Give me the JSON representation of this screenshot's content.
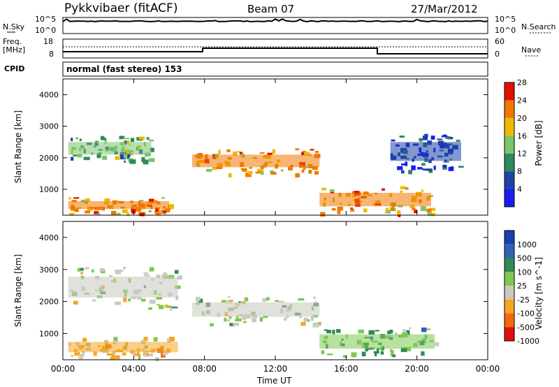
{
  "header": {
    "radar": "Pykkvibaer (fitACF)",
    "beam": "Beam 07",
    "date": "27/Mar/2012"
  },
  "noise_panel": {
    "left_label": "N.Sky",
    "right_label": "N.Search",
    "left_ticks": [
      "10^5",
      "10^0"
    ],
    "right_ticks": [
      "10^5",
      "10^0"
    ]
  },
  "freq_panel": {
    "left_label_1": "Freq.",
    "left_label_2": "[MHz]",
    "right_label": "Nave",
    "left_ticks": [
      "18",
      "8"
    ],
    "right_ticks": [
      "60",
      "0"
    ]
  },
  "cpid": {
    "label": "CPID",
    "value": "normal (fast stereo) 153"
  },
  "x_axis": {
    "label": "Time UT",
    "ticks": [
      "00:00",
      "04:00",
      "08:00",
      "12:00",
      "16:00",
      "20:00",
      "00:00"
    ]
  },
  "chart_data": [
    {
      "type": "heatmap",
      "title": "",
      "xlabel": "Time UT",
      "ylabel": "Slant Range [km]",
      "x_ticks": [
        "00:00",
        "04:00",
        "08:00",
        "12:00",
        "16:00",
        "20:00",
        "00:00"
      ],
      "x_range_hours": [
        0,
        24
      ],
      "ylim": [
        180,
        4500
      ],
      "y_ticks": [
        1000,
        2000,
        3000,
        4000
      ],
      "colorbar": {
        "label": "Power [dB]",
        "ticks": [
          4,
          8,
          12,
          16,
          20,
          24,
          28
        ],
        "colors": [
          "#1c1cf2",
          "#1e44a8",
          "#2e8a5a",
          "#7cc46a",
          "#f0b800",
          "#f07800",
          "#e21000"
        ]
      },
      "regions": [
        {
          "name": "morning-near",
          "t": [
            0.3,
            6.0
          ],
          "range": [
            250,
            750
          ],
          "value": 26
        },
        {
          "name": "morning-arc",
          "t": [
            0.3,
            5.0
          ],
          "range": [
            1900,
            2700
          ],
          "value": 18
        },
        {
          "name": "midday-band",
          "t": [
            7.3,
            14.5
          ],
          "range": [
            1500,
            2300
          ],
          "value": 26
        },
        {
          "name": "afternoon-near",
          "t": [
            14.5,
            20.8
          ],
          "range": [
            250,
            1100
          ],
          "value": 24
        },
        {
          "name": "evening-echo",
          "t": [
            18.5,
            22.5
          ],
          "range": [
            1600,
            2800
          ],
          "value": 10
        }
      ]
    },
    {
      "type": "heatmap",
      "title": "",
      "xlabel": "Time UT",
      "ylabel": "Slant Range [km]",
      "x_ticks": [
        "00:00",
        "04:00",
        "08:00",
        "12:00",
        "16:00",
        "20:00",
        "00:00"
      ],
      "x_range_hours": [
        0,
        24
      ],
      "ylim": [
        180,
        4500
      ],
      "y_ticks": [
        1000,
        2000,
        3000,
        4000
      ],
      "colorbar": {
        "label": "Velocity [m s^-1]",
        "ticks": [
          "1000",
          "500",
          "100",
          "25",
          "-25",
          "-100",
          "-500",
          "-1000"
        ],
        "colors": [
          "#1d3fb0",
          "#2e63b8",
          "#2f8a55",
          "#7ec850",
          "#c9c9c0",
          "#f5a623",
          "#f26a0c",
          "#e0100c"
        ]
      },
      "regions": [
        {
          "name": "ground-scatter-arc",
          "t": [
            0.3,
            6.5
          ],
          "range": [
            1800,
            3100
          ],
          "value": 0
        },
        {
          "name": "morning-near",
          "t": [
            0.3,
            6.5
          ],
          "range": [
            250,
            900
          ],
          "value": -150
        },
        {
          "name": "midday-ground",
          "t": [
            7.3,
            14.5
          ],
          "range": [
            1300,
            2200
          ],
          "value": 0
        },
        {
          "name": "afternoon-near",
          "t": [
            14.5,
            21.0
          ],
          "range": [
            300,
            1200
          ],
          "value": 200
        }
      ]
    }
  ]
}
